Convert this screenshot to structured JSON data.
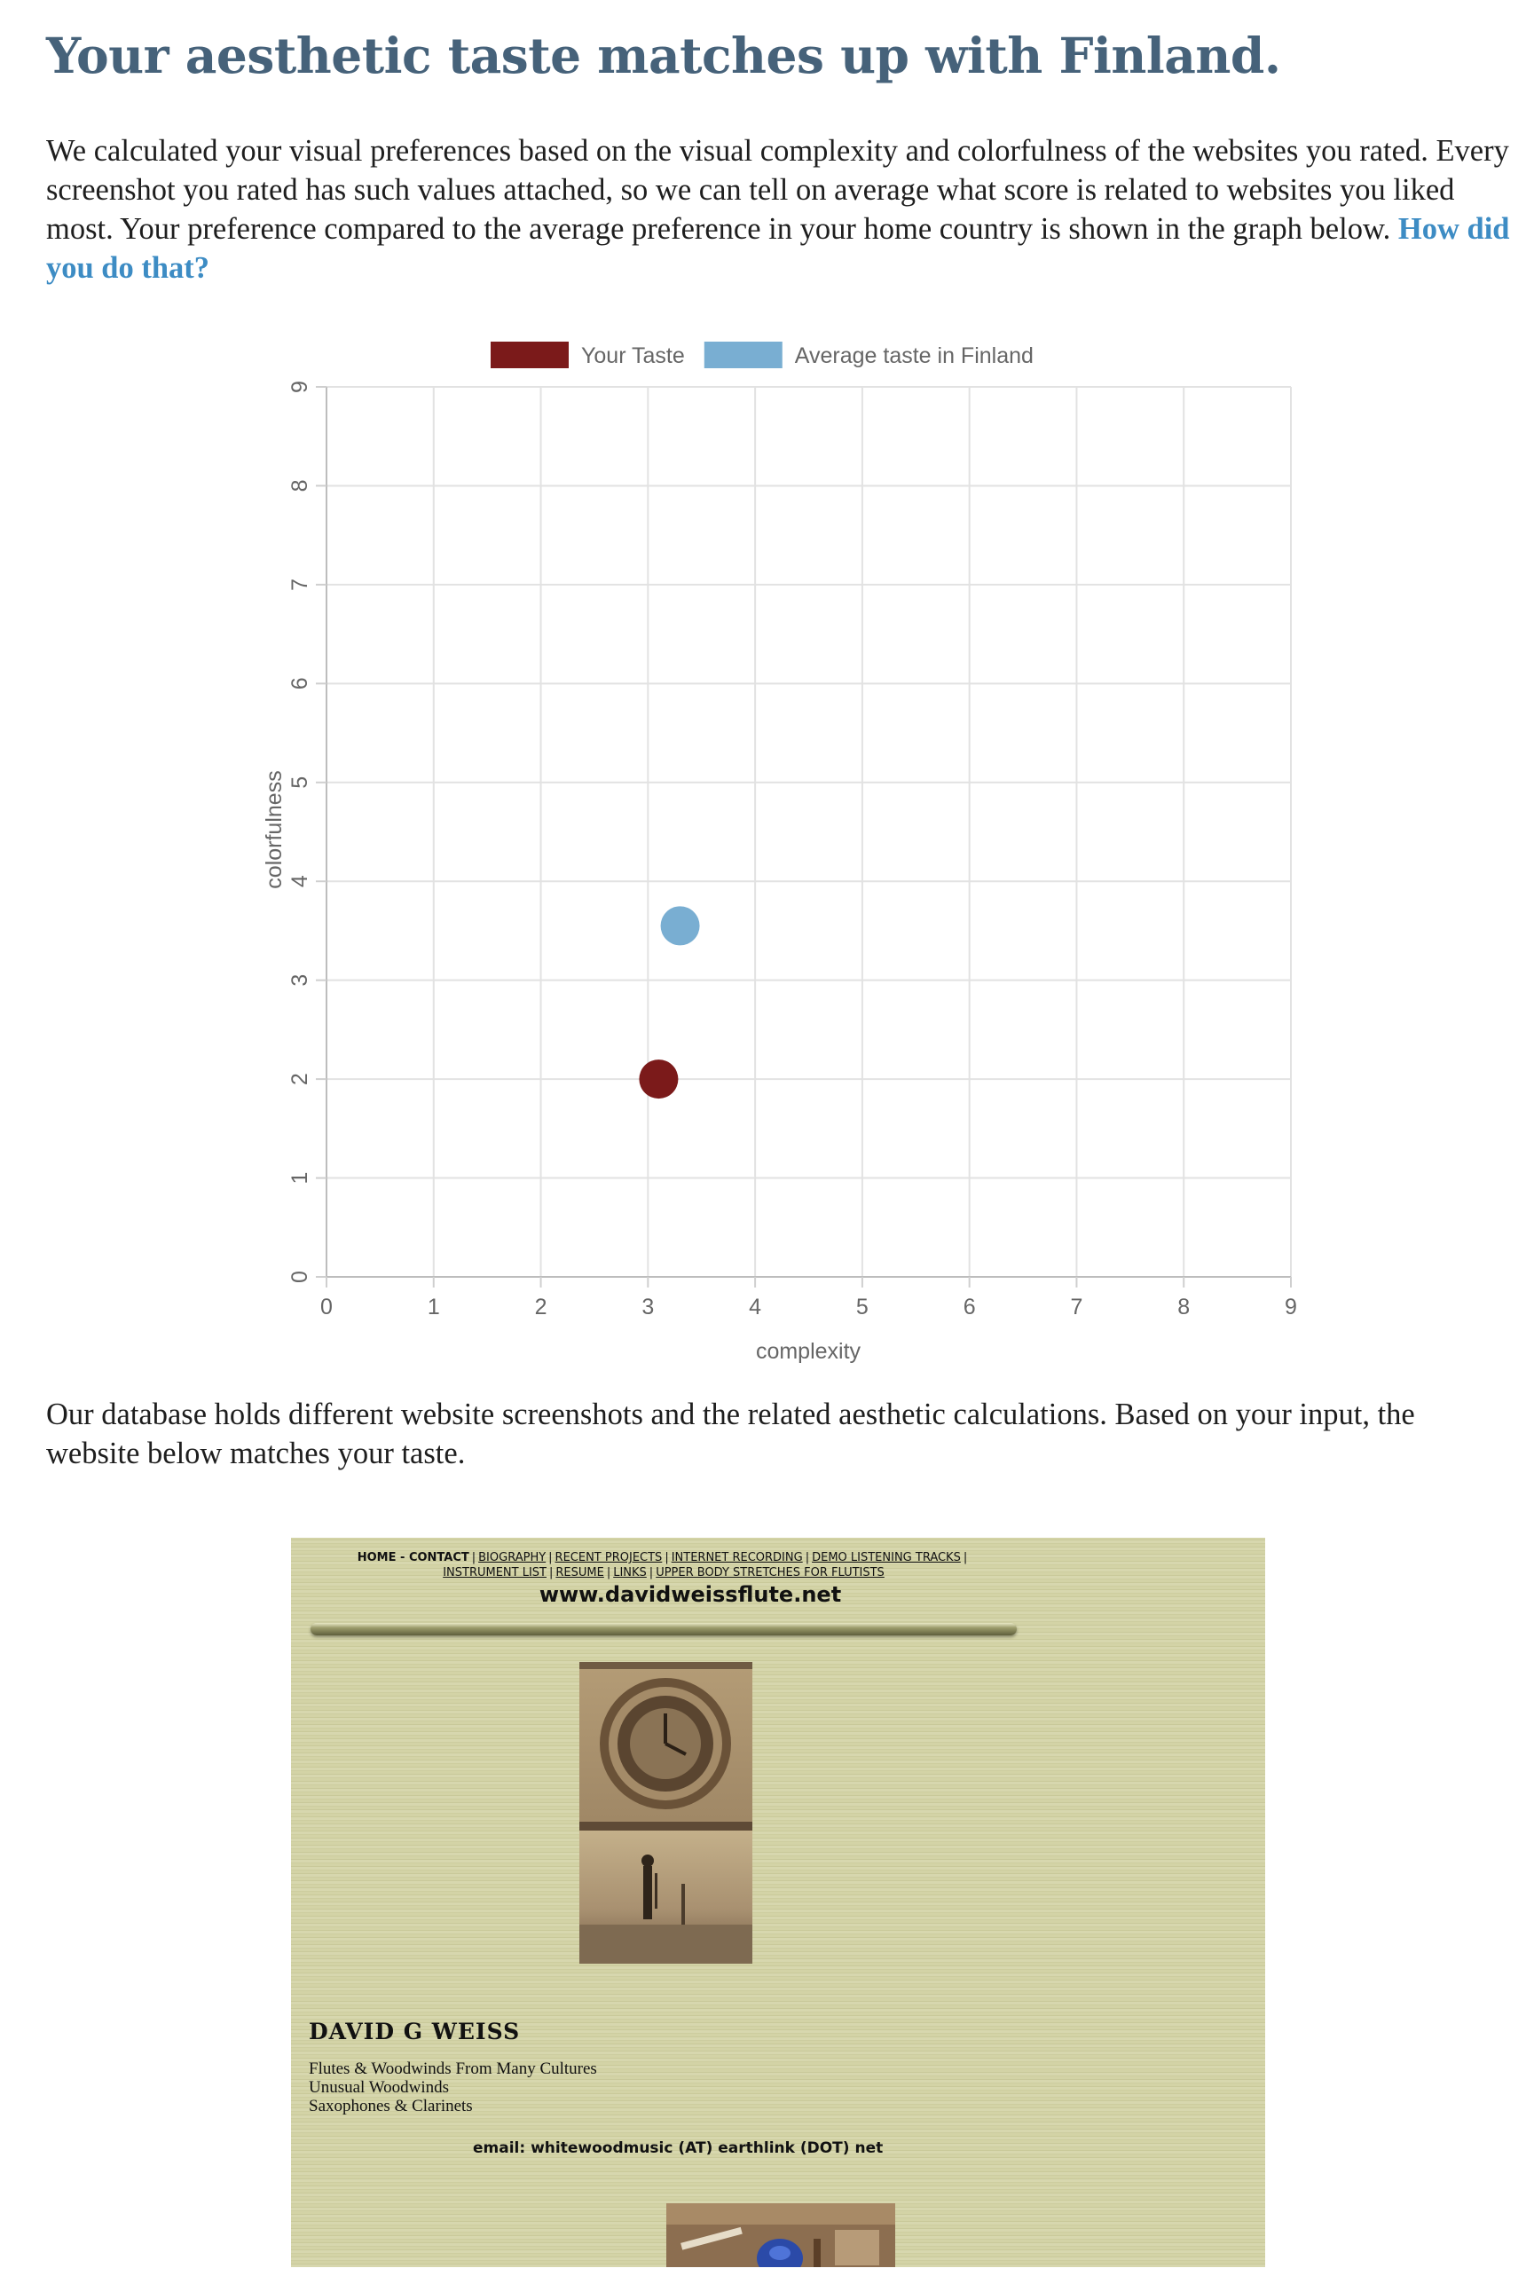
{
  "result": {
    "title": "Your aesthetic taste matches up with Finland.",
    "intro": "We calculated your visual preferences based on the visual complexity and colorfulness of the websites you rated. Every screenshot you rated has such values attached, so we can tell on average what score is related to websites you liked most. Your preference compared to the average preference in your home country is shown in the graph below.",
    "how_link": "How did you do that?"
  },
  "chart_data": {
    "type": "scatter",
    "title": "",
    "xlabel": "complexity",
    "ylabel": "colorfulness",
    "xlim": [
      0,
      9
    ],
    "ylim": [
      0,
      9
    ],
    "x_ticks": [
      "0",
      "1",
      "2",
      "3",
      "4",
      "5",
      "6",
      "7",
      "8",
      "9"
    ],
    "y_ticks": [
      "0",
      "1",
      "2",
      "3",
      "4",
      "5",
      "6",
      "7",
      "8",
      "9"
    ],
    "grid": true,
    "legend_position": "top",
    "series": [
      {
        "name": "Your Taste",
        "color": "#7b1a1a",
        "points": [
          {
            "x": 3.1,
            "y": 2.0
          }
        ]
      },
      {
        "name": "Average taste in Finland",
        "color": "#79aed2",
        "points": [
          {
            "x": 3.3,
            "y": 3.55
          }
        ]
      }
    ]
  },
  "match": {
    "text": "Our database holds different website screenshots and the related aesthetic calculations. Based on your input, the website below matches your taste."
  },
  "website": {
    "nav_home": "HOME - CONTACT",
    "nav_links_line1": [
      "BIOGRAPHY",
      "RECENT PROJECTS",
      "INTERNET RECORDING",
      "DEMO LISTENING TRACKS"
    ],
    "nav_links_line2": [
      "INSTRUMENT LIST",
      "RESUME",
      "LINKS",
      "UPPER BODY STRETCHES FOR FLUTISTS"
    ],
    "url": "www.davidweissflute.net",
    "name": "DAVID G WEISS",
    "desc_lines": [
      "Flutes & Woodwinds From Many Cultures",
      "Unusual Woodwinds",
      "Saxophones & Clarinets"
    ],
    "email": "email: whitewoodmusic (AT) earthlink (DOT) net"
  }
}
